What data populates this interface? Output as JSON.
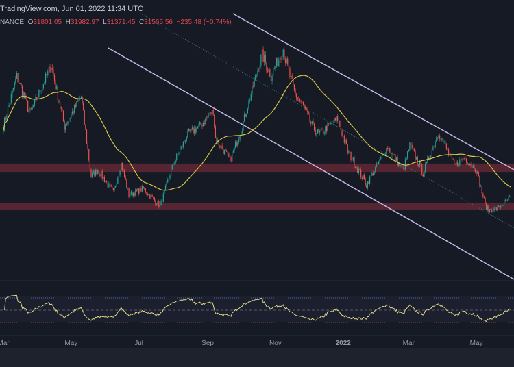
{
  "header": {
    "attribution": "TradingView.com, Jun 01, 2022 11:34 UTC",
    "symbol": "NANCE",
    "open_label": "O",
    "open": "31801.05",
    "high_label": "H",
    "high": "31982.97",
    "low_label": "L",
    "low": "31371.45",
    "close_label": "C",
    "close": "31565.56",
    "change": "−235.48 (−0.74%)"
  },
  "colors": {
    "background": "#161a25",
    "up": "#26a69a",
    "down": "#ef5350",
    "ma": "#d8c64a",
    "rsi": "#e3dc8a",
    "zone": "#6b2a36",
    "channel": "#c7b8e8"
  },
  "chart_data": [
    {
      "type": "candlestick",
      "title": "",
      "xlabel": "",
      "ylabel": "",
      "x_ticks": [
        "Mar",
        "May",
        "Jul",
        "Sep",
        "Nov",
        "2022",
        "Mar",
        "May"
      ],
      "series": [
        {
          "points": [
            [
              "2021-03-01",
              49000
            ],
            [
              "2021-03-13",
              61000
            ],
            [
              "2021-03-25",
              52000
            ],
            [
              "2021-04-13",
              63500
            ],
            [
              "2021-04-25",
              49000
            ],
            [
              "2021-05-10",
              56000
            ],
            [
              "2021-05-19",
              37000
            ],
            [
              "2021-05-25",
              38500
            ],
            [
              "2021-06-08",
              33000
            ],
            [
              "2021-06-15",
              40000
            ],
            [
              "2021-06-22",
              32500
            ],
            [
              "2021-07-05",
              34000
            ],
            [
              "2021-07-20",
              29800
            ],
            [
              "2021-08-01",
              40000
            ],
            [
              "2021-08-14",
              47000
            ],
            [
              "2021-08-25",
              49000
            ],
            [
              "2021-09-06",
              52700
            ],
            [
              "2021-09-08",
              46000
            ],
            [
              "2021-09-21",
              40700
            ],
            [
              "2021-10-01",
              48000
            ],
            [
              "2021-10-15",
              61500
            ],
            [
              "2021-10-20",
              66000
            ],
            [
              "2021-10-28",
              61000
            ],
            [
              "2021-11-08",
              67500
            ],
            [
              "2021-11-10",
              64900
            ],
            [
              "2021-11-18",
              57000
            ],
            [
              "2021-11-26",
              53700
            ],
            [
              "2021-12-04",
              49000
            ],
            [
              "2021-12-10",
              47000
            ],
            [
              "2021-12-27",
              50700
            ],
            [
              "2022-01-05",
              43000
            ],
            [
              "2022-01-22",
              35000
            ],
            [
              "2022-02-10",
              44000
            ],
            [
              "2022-02-24",
              38300
            ],
            [
              "2022-03-02",
              44400
            ],
            [
              "2022-03-14",
              37800
            ],
            [
              "2022-03-28",
              47500
            ],
            [
              "2022-04-11",
              39500
            ],
            [
              "2022-04-20",
              41500
            ],
            [
              "2022-05-01",
              38500
            ],
            [
              "2022-05-09",
              30000
            ],
            [
              "2022-05-12",
              28900
            ],
            [
              "2022-05-20",
              29200
            ],
            [
              "2022-05-31",
              31800
            ],
            [
              "2022-06-01",
              31565.56
            ]
          ]
        }
      ],
      "moving_average": {
        "period": 50
      },
      "zones": [
        {
          "from": 38000,
          "to": 40000
        },
        {
          "from": 29000,
          "to": 30500
        }
      ],
      "channel_lines": 3,
      "grid": false
    },
    {
      "type": "line",
      "title": "",
      "indicator": "RSI",
      "levels": [
        70,
        50,
        30
      ]
    }
  ]
}
